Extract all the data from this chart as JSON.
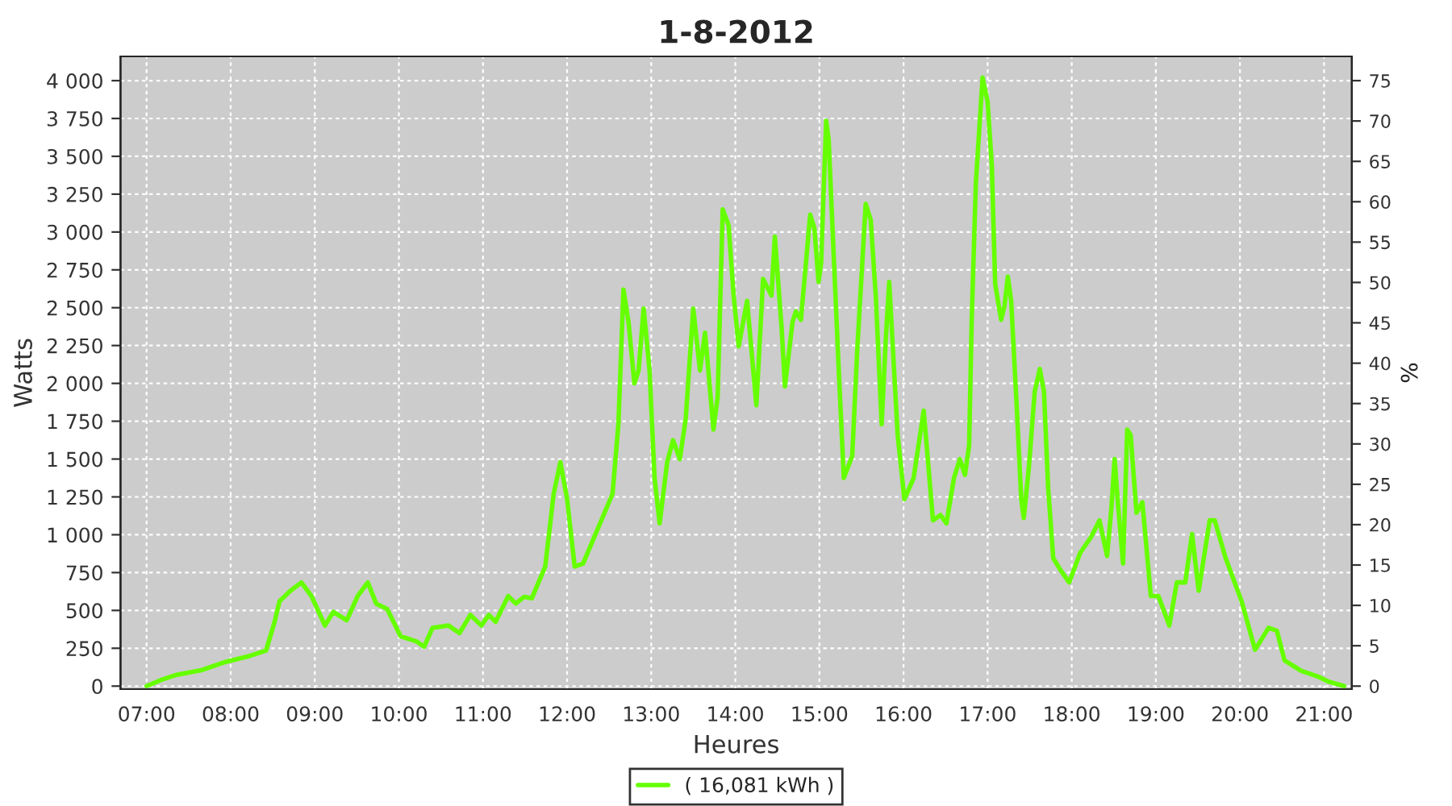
{
  "chart_data": {
    "type": "line",
    "title": "1-8-2012",
    "xlabel": "Heures",
    "ylabel": "Watts",
    "y2label": "%",
    "xlim": [
      6.69,
      21.33
    ],
    "ylim": [
      -20,
      4160
    ],
    "y2lim": [
      -0.375,
      78
    ],
    "xticks": [
      {
        "value": 7,
        "label": "07:00"
      },
      {
        "value": 8,
        "label": "08:00"
      },
      {
        "value": 9,
        "label": "09:00"
      },
      {
        "value": 10,
        "label": "10:00"
      },
      {
        "value": 11,
        "label": "11:00"
      },
      {
        "value": 12,
        "label": "12:00"
      },
      {
        "value": 13,
        "label": "13:00"
      },
      {
        "value": 14,
        "label": "14:00"
      },
      {
        "value": 15,
        "label": "15:00"
      },
      {
        "value": 16,
        "label": "16:00"
      },
      {
        "value": 17,
        "label": "17:00"
      },
      {
        "value": 18,
        "label": "18:00"
      },
      {
        "value": 19,
        "label": "19:00"
      },
      {
        "value": 20,
        "label": "20:00"
      },
      {
        "value": 21,
        "label": "21:00"
      }
    ],
    "yticks": [
      0,
      250,
      500,
      750,
      {
        "value": 1000,
        "label": "1 000"
      },
      {
        "value": 1250,
        "label": "1 250"
      },
      {
        "value": 1500,
        "label": "1 500"
      },
      {
        "value": 1750,
        "label": "1 750"
      },
      {
        "value": 2000,
        "label": "2 000"
      },
      {
        "value": 2250,
        "label": "2 250"
      },
      {
        "value": 2500,
        "label": "2 500"
      },
      {
        "value": 2750,
        "label": "2 750"
      },
      {
        "value": 3000,
        "label": "3 000"
      },
      {
        "value": 3250,
        "label": "3 250"
      },
      {
        "value": 3500,
        "label": "3 500"
      },
      {
        "value": 3750,
        "label": "3 750"
      },
      {
        "value": 4000,
        "label": "4 000"
      }
    ],
    "y2ticks": [
      0,
      5,
      10,
      15,
      20,
      25,
      30,
      35,
      40,
      45,
      50,
      55,
      60,
      65,
      70,
      75
    ],
    "grid": true,
    "legend": "bottom",
    "marker": "none",
    "line_style": "solid",
    "series": [
      {
        "name": "( 16,081 kWh )",
        "color": "#66ff00",
        "x": [
          7.0,
          7.17,
          7.36,
          7.65,
          7.94,
          8.23,
          8.42,
          8.52,
          8.58,
          8.71,
          8.84,
          8.96,
          9.12,
          9.22,
          9.38,
          9.51,
          9.63,
          9.73,
          9.86,
          10.02,
          10.21,
          10.3,
          10.4,
          10.59,
          10.72,
          10.85,
          10.98,
          11.07,
          11.15,
          11.3,
          11.39,
          11.49,
          11.58,
          11.74,
          11.84,
          11.92,
          12.0,
          12.09,
          12.19,
          12.35,
          12.54,
          12.61,
          12.67,
          12.73,
          12.8,
          12.85,
          12.91,
          12.98,
          13.04,
          13.1,
          13.19,
          13.26,
          13.34,
          13.41,
          13.5,
          13.58,
          13.64,
          13.74,
          13.79,
          13.85,
          13.92,
          13.98,
          14.04,
          14.14,
          14.25,
          14.33,
          14.43,
          14.47,
          14.55,
          14.59,
          14.68,
          14.72,
          14.78,
          14.89,
          14.94,
          14.99,
          15.02,
          15.08,
          15.11,
          15.16,
          15.23,
          15.29,
          15.39,
          15.45,
          15.55,
          15.61,
          15.67,
          15.74,
          15.79,
          15.83,
          15.93,
          16.01,
          16.12,
          16.24,
          16.35,
          16.44,
          16.51,
          16.6,
          16.67,
          16.73,
          16.78,
          16.81,
          16.86,
          16.94,
          17.0,
          17.05,
          17.09,
          17.16,
          17.2,
          17.24,
          17.28,
          17.35,
          17.4,
          17.43,
          17.49,
          17.56,
          17.62,
          17.67,
          17.72,
          17.78,
          17.88,
          17.97,
          18.1,
          18.23,
          18.33,
          18.42,
          18.47,
          18.51,
          18.55,
          18.61,
          18.66,
          18.7,
          18.77,
          18.84,
          18.94,
          19.03,
          19.16,
          19.25,
          19.35,
          19.43,
          19.51,
          19.64,
          19.7,
          19.83,
          20.02,
          20.18,
          20.34,
          20.44,
          20.53,
          20.73,
          20.92,
          21.05,
          21.24
        ],
        "values": [
          0,
          40,
          75,
          105,
          160,
          200,
          235,
          420,
          560,
          630,
          685,
          595,
          400,
          490,
          435,
          595,
          685,
          545,
          510,
          330,
          295,
          260,
          385,
          400,
          350,
          470,
          400,
          470,
          425,
          595,
          545,
          590,
          580,
          790,
          1270,
          1480,
          1235,
          790,
          810,
          1020,
          1270,
          1730,
          2620,
          2405,
          2000,
          2085,
          2495,
          2085,
          1375,
          1075,
          1480,
          1625,
          1500,
          1765,
          2495,
          2085,
          2335,
          1695,
          1910,
          3150,
          3045,
          2580,
          2245,
          2545,
          1855,
          2690,
          2580,
          2970,
          2370,
          1980,
          2405,
          2475,
          2420,
          3115,
          3025,
          2670,
          2795,
          3735,
          3610,
          2970,
          2085,
          1375,
          1520,
          2225,
          3185,
          3080,
          2580,
          1730,
          2300,
          2670,
          1660,
          1235,
          1375,
          1820,
          1095,
          1130,
          1075,
          1375,
          1500,
          1395,
          1590,
          2405,
          3325,
          4020,
          3860,
          3435,
          2655,
          2420,
          2510,
          2705,
          2545,
          1800,
          1235,
          1110,
          1445,
          1945,
          2095,
          1945,
          1305,
          845,
          755,
          685,
          880,
          985,
          1095,
          860,
          1165,
          1500,
          1200,
          810,
          1695,
          1660,
          1145,
          1215,
          595,
          595,
          400,
          685,
          685,
          1005,
          630,
          1095,
          1095,
          845,
          560,
          240,
          385,
          365,
          170,
          100,
          65,
          30,
          0
        ]
      }
    ]
  }
}
